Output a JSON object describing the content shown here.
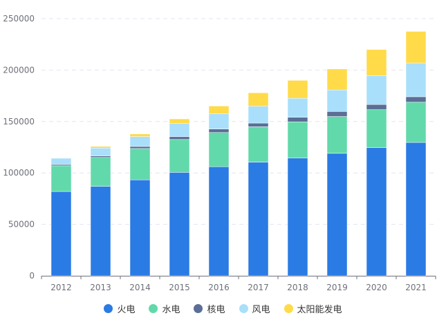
{
  "chart_data": {
    "type": "bar",
    "stacked": true,
    "categories": [
      "2012",
      "2013",
      "2014",
      "2015",
      "2016",
      "2017",
      "2018",
      "2019",
      "2020",
      "2021"
    ],
    "series": [
      {
        "name": "火电",
        "color": "#2a7be4",
        "values": [
          81968,
          87009,
          93232,
          100554,
          106094,
          110495,
          114408,
          119055,
          124517,
          129678
        ]
      },
      {
        "name": "水电",
        "color": "#62d9ab",
        "values": [
          24947,
          28044,
          30486,
          31954,
          33207,
          34411,
          35259,
          35804,
          37016,
          39092
        ]
      },
      {
        "name": "核电",
        "color": "#5b6e96",
        "values": [
          1257,
          1466,
          2008,
          2717,
          3364,
          3582,
          4466,
          4874,
          4989,
          5326
        ]
      },
      {
        "name": "风电",
        "color": "#a9dffa",
        "values": [
          6142,
          7652,
          9657,
          13075,
          14747,
          16400,
          18427,
          20915,
          28153,
          32848
        ]
      },
      {
        "name": "太阳能发电",
        "color": "#ffdb4a",
        "values": [
          341,
          1589,
          2486,
          4218,
          7631,
          13042,
          17433,
          20418,
          25343,
          30656
        ]
      }
    ],
    "ylim": [
      0,
      250000
    ],
    "yticks": [
      "0",
      "50000",
      "100000",
      "150000",
      "200000",
      "250000"
    ],
    "grid": true,
    "legend": "bottom"
  }
}
